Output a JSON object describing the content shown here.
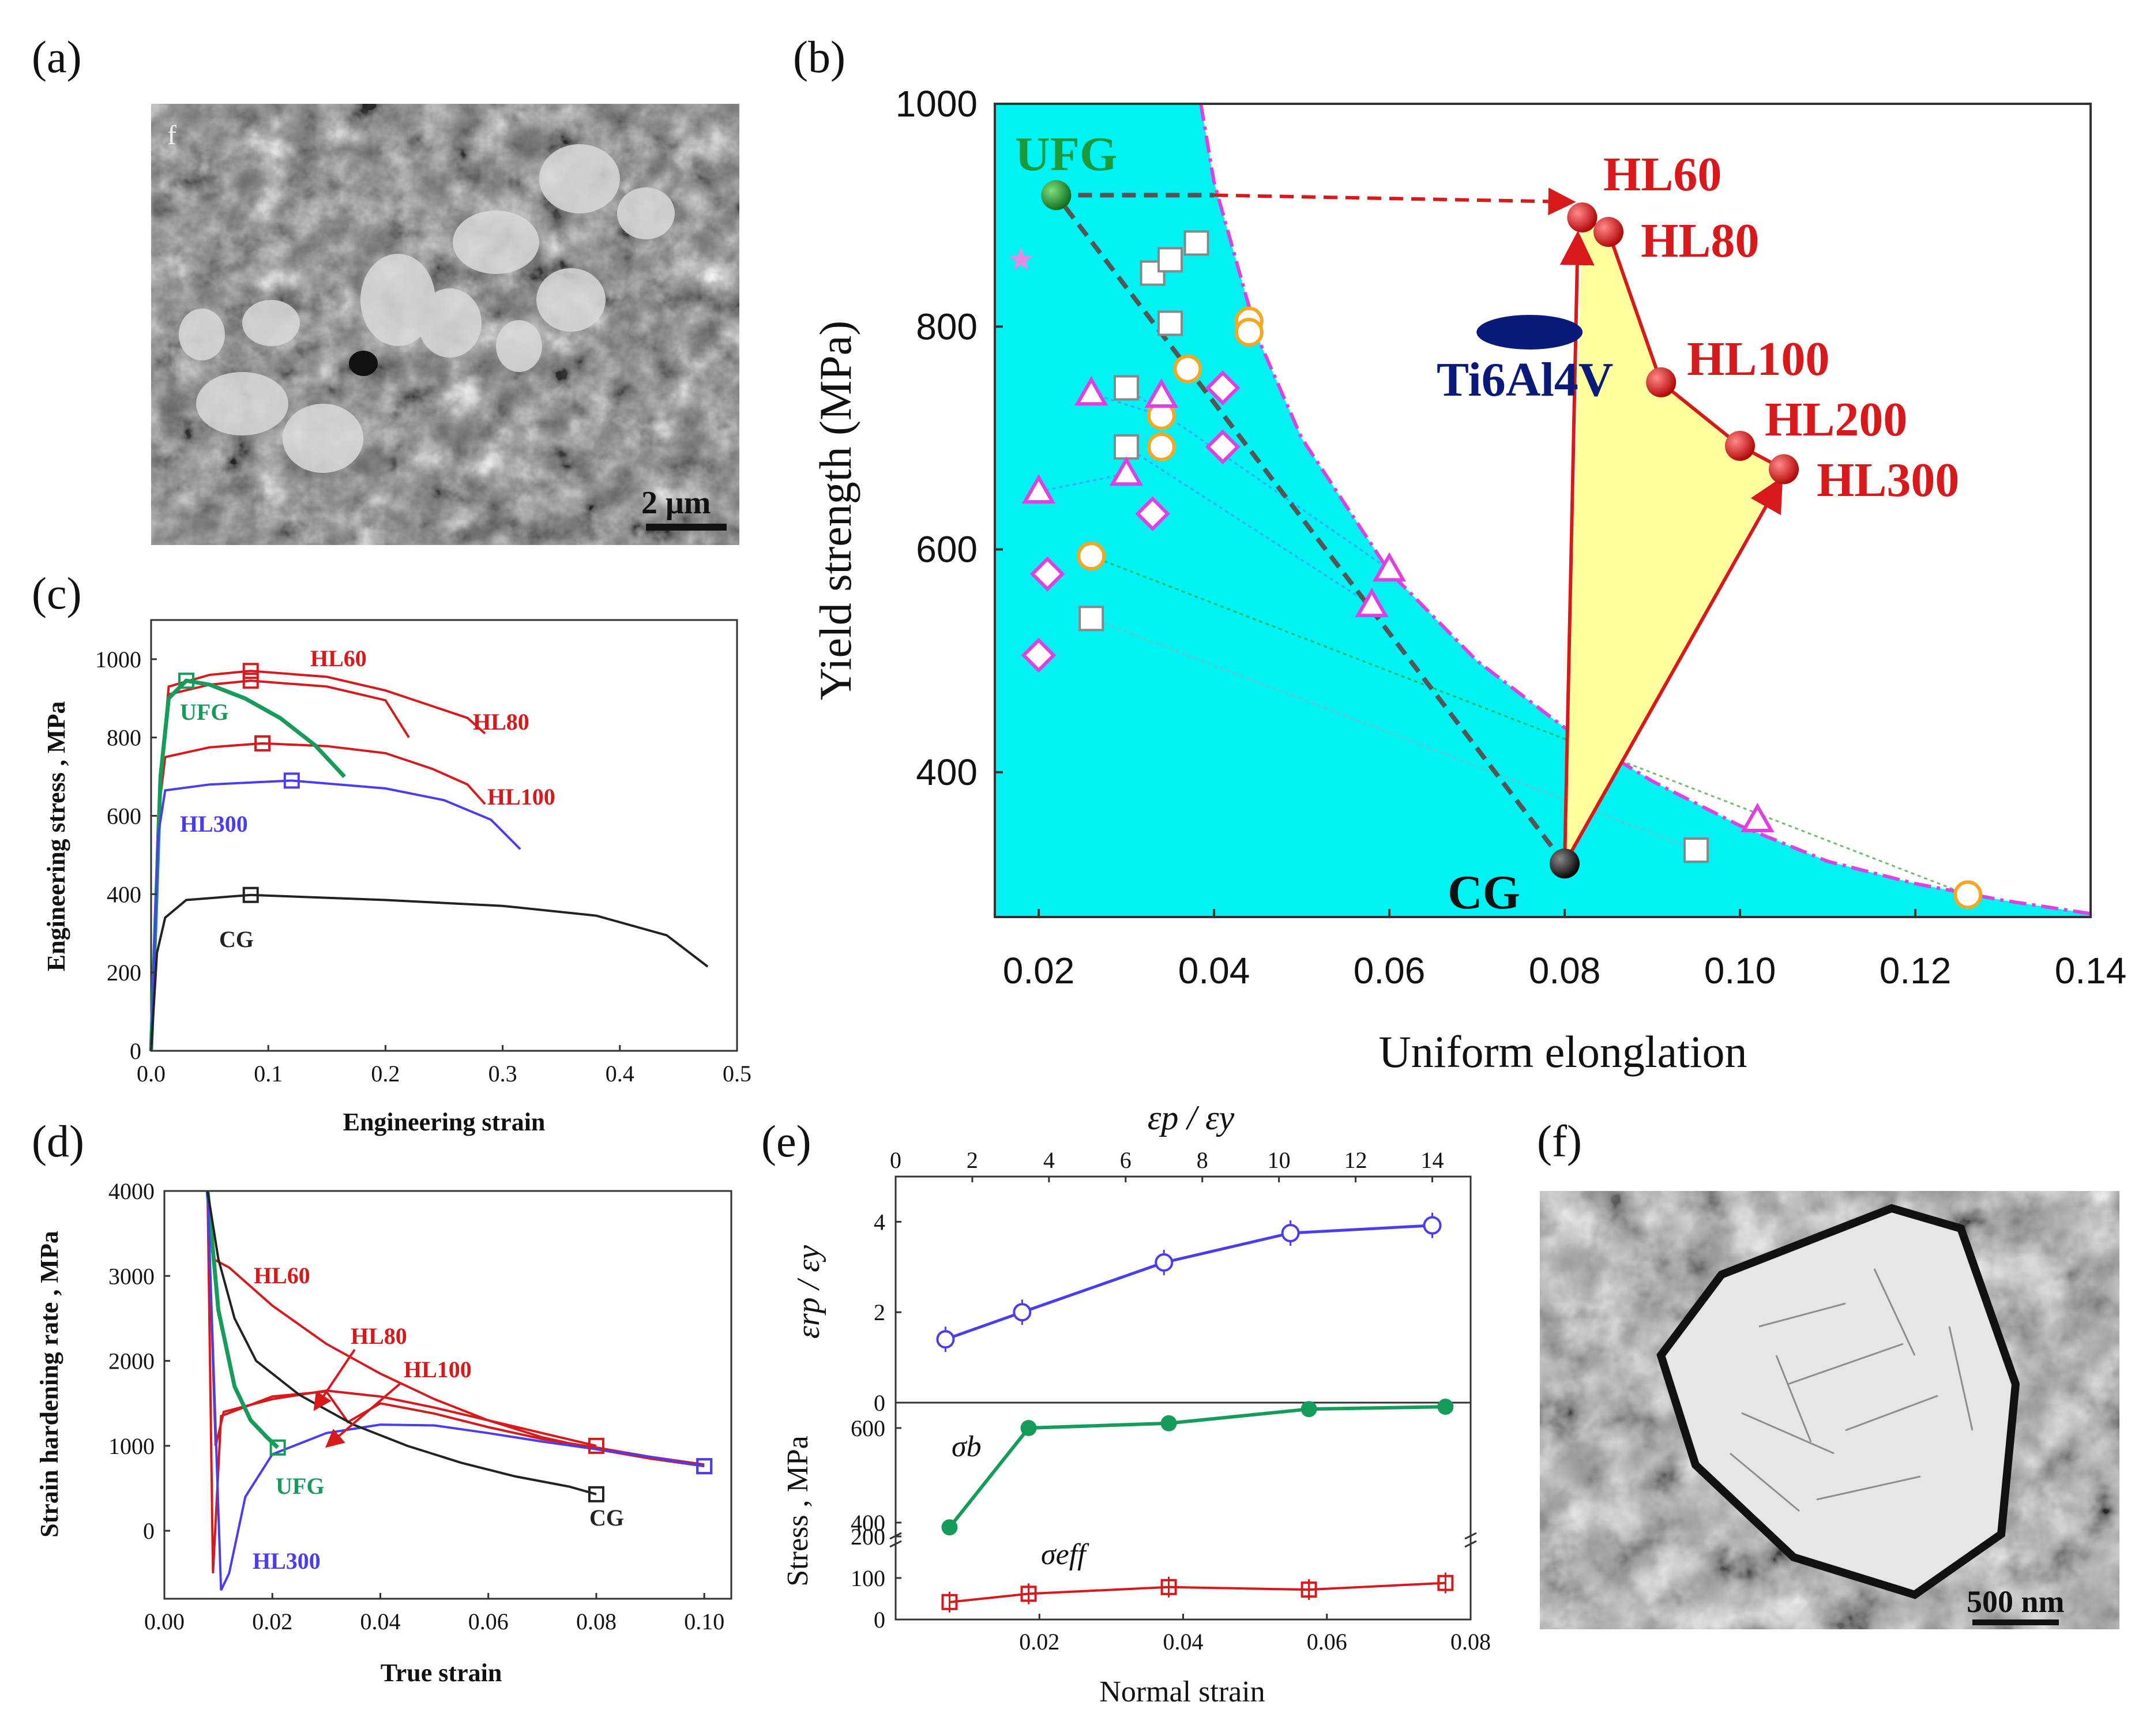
{
  "panel_labels": {
    "a": "(a)",
    "b": "(b)",
    "c": "(c)",
    "d": "(d)",
    "e": "(e)",
    "f": "(f)"
  },
  "colors": {
    "red": "#d7191c",
    "green": "#159b5a",
    "blue": "#4a3cf0",
    "black": "#222222",
    "cyan": "#00f2f2",
    "yellow": "#ffff9e",
    "navy": "#0a1a78",
    "magenta": "#e040e0",
    "orange": "#f5a623"
  },
  "micrographs": {
    "a": {
      "corner_label": "f",
      "scale_bar": "2 μm"
    },
    "f": {
      "scale_bar": "500 nm"
    }
  },
  "chart_data": [
    {
      "id": "b",
      "type": "scatter",
      "xlabel": "Uniform elonglation",
      "ylabel": "Yield strength (MPa)",
      "xlim": [
        0.015,
        0.14
      ],
      "ylim": [
        270,
        1000
      ],
      "xticks": [
        "0.02",
        "0.04",
        "0.06",
        "0.08",
        "0.10",
        "0.12",
        "0.14"
      ],
      "yticks": [
        "400",
        "600",
        "800",
        "1000"
      ],
      "labels": {
        "UFG": "UFG",
        "CG": "CG",
        "Ti6Al4V": "Ti6Al4V",
        "HL60": "HL60",
        "HL80": "HL80",
        "HL100": "HL100",
        "HL200": "HL200",
        "HL300": "HL300"
      },
      "ufg": [
        0.022,
        918
      ],
      "cg": [
        0.08,
        318
      ],
      "ti6al4v": [
        0.076,
        795
      ],
      "hl_points": [
        {
          "name": "HL60",
          "x": 0.082,
          "y": 898
        },
        {
          "name": "HL80",
          "x": 0.085,
          "y": 885
        },
        {
          "name": "HL100",
          "x": 0.091,
          "y": 750
        },
        {
          "name": "HL200",
          "x": 0.1,
          "y": 693
        },
        {
          "name": "HL300",
          "x": 0.105,
          "y": 672
        }
      ],
      "boundary_curve": [
        [
          0.0385,
          1000
        ],
        [
          0.04,
          930
        ],
        [
          0.045,
          790
        ],
        [
          0.05,
          700
        ],
        [
          0.06,
          580
        ],
        [
          0.07,
          500
        ],
        [
          0.08,
          440
        ],
        [
          0.09,
          392
        ],
        [
          0.1,
          352
        ],
        [
          0.11,
          320
        ],
        [
          0.12,
          300
        ],
        [
          0.13,
          285
        ],
        [
          0.14,
          273
        ]
      ],
      "squares": [
        [
          0.026,
          538
        ],
        [
          0.03,
          745
        ],
        [
          0.03,
          692
        ],
        [
          0.033,
          848
        ],
        [
          0.035,
          860
        ],
        [
          0.035,
          803
        ],
        [
          0.038,
          875
        ],
        [
          0.095,
          330
        ]
      ],
      "circles": [
        [
          0.026,
          594
        ],
        [
          0.034,
          720
        ],
        [
          0.034,
          692
        ],
        [
          0.037,
          762
        ],
        [
          0.044,
          805
        ],
        [
          0.044,
          795
        ],
        [
          0.126,
          290
        ]
      ],
      "triangles": [
        [
          0.02,
          652
        ],
        [
          0.026,
          740
        ],
        [
          0.03,
          668
        ],
        [
          0.034,
          738
        ],
        [
          0.058,
          550
        ],
        [
          0.06,
          582
        ],
        [
          0.102,
          357
        ]
      ],
      "diamonds": [
        [
          0.02,
          505
        ],
        [
          0.021,
          578
        ],
        [
          0.033,
          632
        ],
        [
          0.041,
          745
        ],
        [
          0.041,
          692
        ]
      ],
      "stars": [
        [
          0.018,
          860
        ]
      ]
    },
    {
      "id": "c",
      "type": "line",
      "xlabel": "Engineering strain",
      "ylabel": "Engineering stress , MPa",
      "xlim": [
        0,
        0.5
      ],
      "ylim": [
        0,
        1100
      ],
      "xticks": [
        "0.0",
        "0.1",
        "0.2",
        "0.3",
        "0.4",
        "0.5"
      ],
      "yticks": [
        "0",
        "200",
        "400",
        "600",
        "800",
        "1000"
      ],
      "series": [
        {
          "name": "HL60",
          "color": "red",
          "points": [
            [
              0,
              0
            ],
            [
              0.008,
              700
            ],
            [
              0.015,
              930
            ],
            [
              0.05,
              960
            ],
            [
              0.085,
              970
            ],
            [
              0.15,
              955
            ],
            [
              0.2,
              920
            ],
            [
              0.24,
              880
            ],
            [
              0.27,
              850
            ],
            [
              0.285,
              810
            ]
          ],
          "marker": [
            0.085,
            970
          ]
        },
        {
          "name": "HL80",
          "color": "red",
          "points": [
            [
              0,
              0
            ],
            [
              0.008,
              700
            ],
            [
              0.015,
              910
            ],
            [
              0.05,
              935
            ],
            [
              0.085,
              945
            ],
            [
              0.15,
              930
            ],
            [
              0.2,
              895
            ],
            [
              0.22,
              800
            ]
          ],
          "marker": [
            0.085,
            945
          ]
        },
        {
          "name": "HL100",
          "color": "red",
          "points": [
            [
              0,
              0
            ],
            [
              0.006,
              600
            ],
            [
              0.012,
              750
            ],
            [
              0.05,
              775
            ],
            [
              0.095,
              785
            ],
            [
              0.15,
              778
            ],
            [
              0.2,
              760
            ],
            [
              0.24,
              720
            ],
            [
              0.27,
              680
            ],
            [
              0.285,
              630
            ]
          ],
          "marker": [
            0.095,
            785
          ]
        },
        {
          "name": "UFG",
          "color": "green",
          "points": [
            [
              0,
              0
            ],
            [
              0.008,
              700
            ],
            [
              0.015,
              900
            ],
            [
              0.03,
              945
            ],
            [
              0.05,
              935
            ],
            [
              0.08,
              900
            ],
            [
              0.11,
              850
            ],
            [
              0.14,
              780
            ],
            [
              0.165,
              700
            ]
          ],
          "marker": [
            0.03,
            945
          ]
        },
        {
          "name": "HL300",
          "color": "blue",
          "points": [
            [
              0,
              0
            ],
            [
              0.006,
              550
            ],
            [
              0.012,
              665
            ],
            [
              0.05,
              680
            ],
            [
              0.12,
              690
            ],
            [
              0.2,
              670
            ],
            [
              0.25,
              640
            ],
            [
              0.29,
              590
            ],
            [
              0.315,
              515
            ]
          ],
          "marker": [
            0.12,
            690
          ]
        },
        {
          "name": "CG",
          "color": "black",
          "points": [
            [
              0,
              0
            ],
            [
              0.005,
              250
            ],
            [
              0.012,
              340
            ],
            [
              0.03,
              385
            ],
            [
              0.085,
              398
            ],
            [
              0.2,
              385
            ],
            [
              0.3,
              370
            ],
            [
              0.38,
              345
            ],
            [
              0.44,
              295
            ],
            [
              0.475,
              215
            ]
          ],
          "marker": [
            0.085,
            398
          ]
        }
      ]
    },
    {
      "id": "d",
      "type": "line",
      "xlabel": "True strain",
      "ylabel": "Strain hardening rate , MPa",
      "xlim": [
        0,
        0.105
      ],
      "ylim": [
        -800,
        4000
      ],
      "xticks": [
        "0.00",
        "0.02",
        "0.04",
        "0.06",
        "0.08",
        "0.10"
      ],
      "yticks": [
        "0",
        "1000",
        "2000",
        "3000",
        "4000"
      ],
      "labels": [
        "HL60",
        "HL80",
        "HL100",
        "UFG",
        "HL300",
        "CG"
      ],
      "series": [
        {
          "name": "HL60",
          "color": "red",
          "points": [
            [
              0.008,
              4000
            ],
            [
              0.009,
              3200
            ],
            [
              0.012,
              3100
            ],
            [
              0.02,
              2650
            ],
            [
              0.03,
              2200
            ],
            [
              0.04,
              1850
            ],
            [
              0.05,
              1550
            ],
            [
              0.06,
              1300
            ],
            [
              0.07,
              1100
            ],
            [
              0.08,
              960
            ],
            [
              0.09,
              850
            ],
            [
              0.1,
              760
            ]
          ]
        },
        {
          "name": "HL80",
          "color": "red",
          "points": [
            [
              0.008,
              4000
            ],
            [
              0.0095,
              1000
            ],
            [
              0.011,
              1400
            ],
            [
              0.02,
              1550
            ],
            [
              0.03,
              1650
            ],
            [
              0.04,
              1580
            ],
            [
              0.05,
              1450
            ],
            [
              0.06,
              1300
            ],
            [
              0.07,
              1150
            ],
            [
              0.08,
              1000
            ]
          ]
        },
        {
          "name": "HL100",
          "color": "red",
          "points": [
            [
              0.008,
              4000
            ],
            [
              0.009,
              -500
            ],
            [
              0.0105,
              1350
            ],
            [
              0.02,
              1580
            ],
            [
              0.03,
              1640
            ],
            [
              0.034,
              1280
            ],
            [
              0.04,
              1500
            ],
            [
              0.05,
              1380
            ],
            [
              0.06,
              1220
            ],
            [
              0.07,
              1080
            ],
            [
              0.08,
              980
            ],
            [
              0.09,
              870
            ],
            [
              0.1,
              780
            ]
          ]
        },
        {
          "name": "UFG",
          "color": "green",
          "points": [
            [
              0.008,
              4000
            ],
            [
              0.01,
              2600
            ],
            [
              0.013,
              1700
            ],
            [
              0.016,
              1300
            ],
            [
              0.019,
              1100
            ],
            [
              0.021,
              980
            ]
          ]
        },
        {
          "name": "HL300",
          "color": "blue",
          "points": [
            [
              0.008,
              4000
            ],
            [
              0.0105,
              -700
            ],
            [
              0.012,
              -500
            ],
            [
              0.015,
              400
            ],
            [
              0.02,
              900
            ],
            [
              0.03,
              1150
            ],
            [
              0.04,
              1250
            ],
            [
              0.05,
              1240
            ],
            [
              0.06,
              1150
            ],
            [
              0.07,
              1050
            ],
            [
              0.08,
              960
            ],
            [
              0.09,
              870
            ],
            [
              0.1,
              760
            ]
          ]
        },
        {
          "name": "CG",
          "color": "black",
          "points": [
            [
              0.008,
              4000
            ],
            [
              0.01,
              3200
            ],
            [
              0.013,
              2500
            ],
            [
              0.017,
              2000
            ],
            [
              0.025,
              1600
            ],
            [
              0.035,
              1250
            ],
            [
              0.045,
              1000
            ],
            [
              0.055,
              800
            ],
            [
              0.065,
              640
            ],
            [
              0.075,
              520
            ],
            [
              0.08,
              430
            ]
          ]
        }
      ],
      "end_markers": [
        [
          "red",
          0.08,
          1000
        ],
        [
          "red",
          0.1,
          760
        ],
        [
          "blue",
          0.1,
          760
        ],
        [
          "green",
          0.021,
          980
        ],
        [
          "black",
          0.08,
          430
        ]
      ]
    },
    {
      "id": "e_top",
      "type": "line",
      "top_xlabel": "εp / εy",
      "ylabel": "εrp / εy",
      "xlim": [
        0,
        15
      ],
      "ylim": [
        0,
        5
      ],
      "xticks": [
        "0",
        "2",
        "4",
        "6",
        "8",
        "10",
        "12",
        "14"
      ],
      "yticks": [
        "0",
        "2",
        "4"
      ],
      "series": [
        {
          "name": "εrp/εy",
          "color": "blue",
          "x": [
            1.3,
            3.3,
            7.0,
            10.3,
            14.0
          ],
          "y": [
            1.4,
            2.0,
            3.1,
            3.75,
            3.92
          ]
        }
      ]
    },
    {
      "id": "e_bottom",
      "type": "line",
      "xlabel": "Normal strain",
      "ylabel": "Stress , MPa",
      "xlim": [
        0,
        0.08
      ],
      "xticks": [
        "0.02",
        "0.04",
        "0.06",
        "0.08"
      ],
      "yticks": [
        "0",
        "100",
        "200",
        "400",
        "600"
      ],
      "labels": {
        "sigma_b": "σb",
        "sigma_eff": "σeff"
      },
      "series": [
        {
          "name": "σb",
          "color": "green",
          "x": [
            0.0075,
            0.0185,
            0.038,
            0.0575,
            0.0765
          ],
          "y": [
            390,
            600,
            610,
            640,
            645
          ]
        },
        {
          "name": "σeff",
          "color": "red",
          "x": [
            0.0075,
            0.0185,
            0.038,
            0.0575,
            0.0765
          ],
          "y": [
            42,
            62,
            78,
            72,
            88
          ]
        }
      ]
    }
  ]
}
